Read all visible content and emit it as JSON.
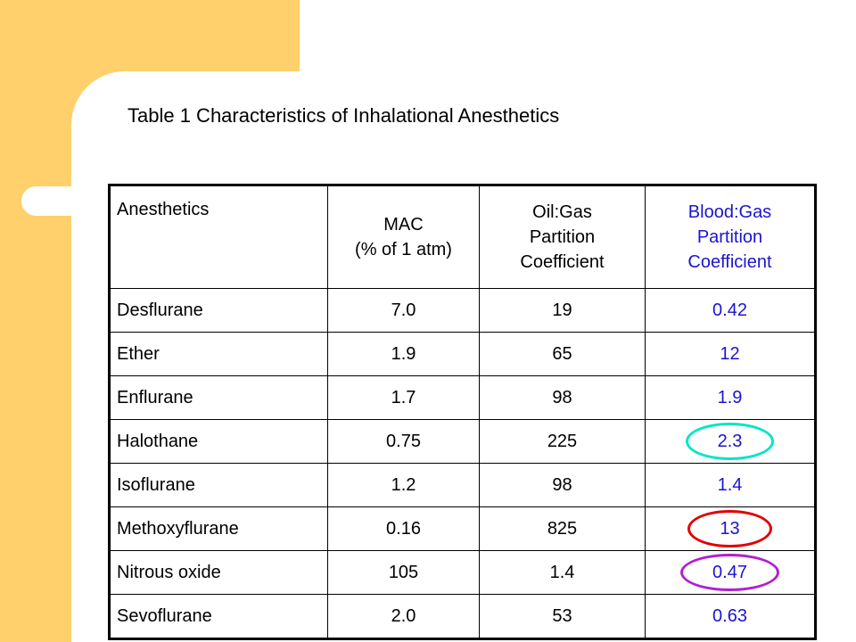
{
  "title": "Table 1 Characteristics of Inhalational Anesthetics",
  "headers": {
    "col1": "Anesthetics",
    "col2_line1": "MAC",
    "col2_line2": "(% of 1 atm)",
    "col3_line1": "Oil:Gas",
    "col3_line2": "Partition",
    "col3_line3": "Coefficient",
    "col4_line1": "Blood:Gas",
    "col4_line2": "Partition",
    "col4_line3": "Coefficient"
  },
  "rows": [
    {
      "name": "Desflurane",
      "mac": "7.0",
      "oil_gas": "19",
      "blood_gas": "0.42"
    },
    {
      "name": "Ether",
      "mac": "1.9",
      "oil_gas": "65",
      "blood_gas": "12"
    },
    {
      "name": "Enflurane",
      "mac": "1.7",
      "oil_gas": "98",
      "blood_gas": "1.9"
    },
    {
      "name": "Halothane",
      "mac": "0.75",
      "oil_gas": "225",
      "blood_gas": "2.3"
    },
    {
      "name": "Isoflurane",
      "mac": "1.2",
      "oil_gas": "98",
      "blood_gas": "1.4"
    },
    {
      "name": "Methoxyflurane",
      "mac": "0.16",
      "oil_gas": "825",
      "blood_gas": "13"
    },
    {
      "name": "Nitrous oxide",
      "mac": "105",
      "oil_gas": "1.4",
      "blood_gas": "0.47"
    },
    {
      "name": "Sevoflurane",
      "mac": "2.0",
      "oil_gas": "53",
      "blood_gas": "0.63"
    }
  ],
  "colors": {
    "band": "#ffd06b",
    "blue_text": "#1c14d0",
    "halothane_circle": "#00e5c8",
    "methoxyflurane_circle": "#e00000",
    "nitrous_oxide_circle": "#b020d0"
  }
}
